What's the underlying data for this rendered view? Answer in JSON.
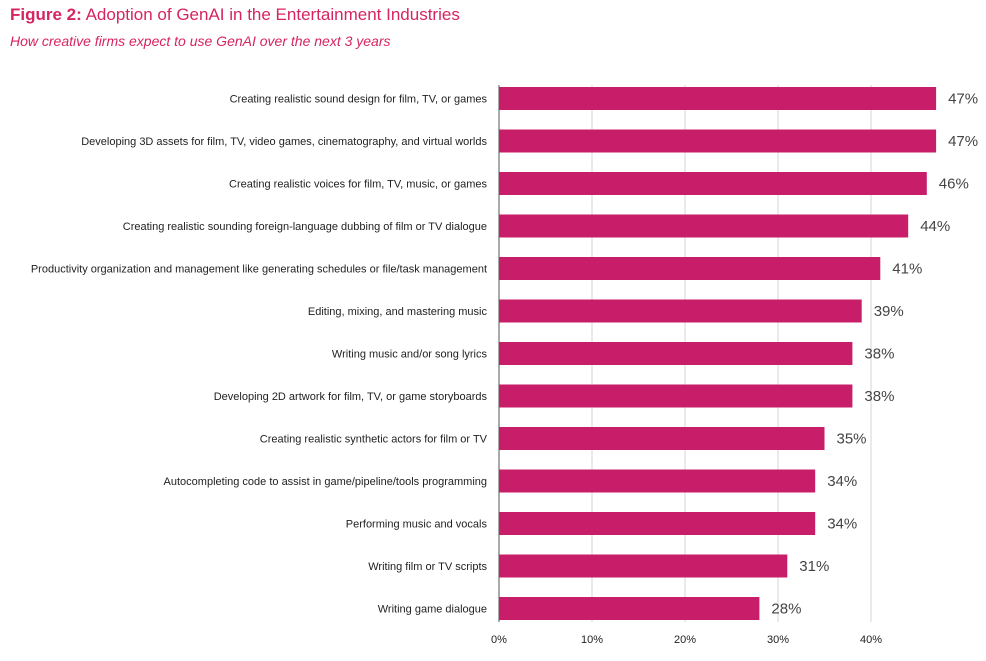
{
  "figure": {
    "label": "Figure 2:",
    "title": "Adoption of GenAI in the Entertainment Industries",
    "subtitle": "How creative firms expect to use GenAI over the next 3 years"
  },
  "chart_data": {
    "type": "bar",
    "orientation": "horizontal",
    "categories": [
      "Creating realistic sound design for film, TV, or games",
      "Developing 3D assets for film, TV, video games, cinematography, and virtual worlds",
      "Creating realistic voices for film, TV, music, or games",
      "Creating realistic sounding foreign-language dubbing of film or TV dialogue",
      "Productivity organization and management like generating schedules or file/task management",
      "Editing, mixing, and mastering music",
      "Writing music and/or song lyrics",
      "Developing 2D artwork for film, TV, or game storyboards",
      "Creating realistic synthetic actors for film or TV",
      "Autocompleting code to assist in game/pipeline/tools programming",
      "Performing music and vocals",
      "Writing film or TV scripts",
      "Writing game dialogue"
    ],
    "values": [
      47,
      47,
      46,
      44,
      41,
      39,
      38,
      38,
      35,
      34,
      34,
      31,
      28
    ],
    "value_labels": [
      "47%",
      "47%",
      "46%",
      "44%",
      "41%",
      "39%",
      "38%",
      "38%",
      "35%",
      "34%",
      "34%",
      "31%",
      "28%"
    ],
    "x_ticks": [
      0,
      10,
      20,
      30,
      40
    ],
    "x_tick_labels": [
      "0%",
      "10%",
      "20%",
      "30%",
      "40%"
    ],
    "xlim": [
      0,
      50
    ],
    "grid": true,
    "bar_color": "#c81e6a",
    "title_color": "#d6245f"
  }
}
